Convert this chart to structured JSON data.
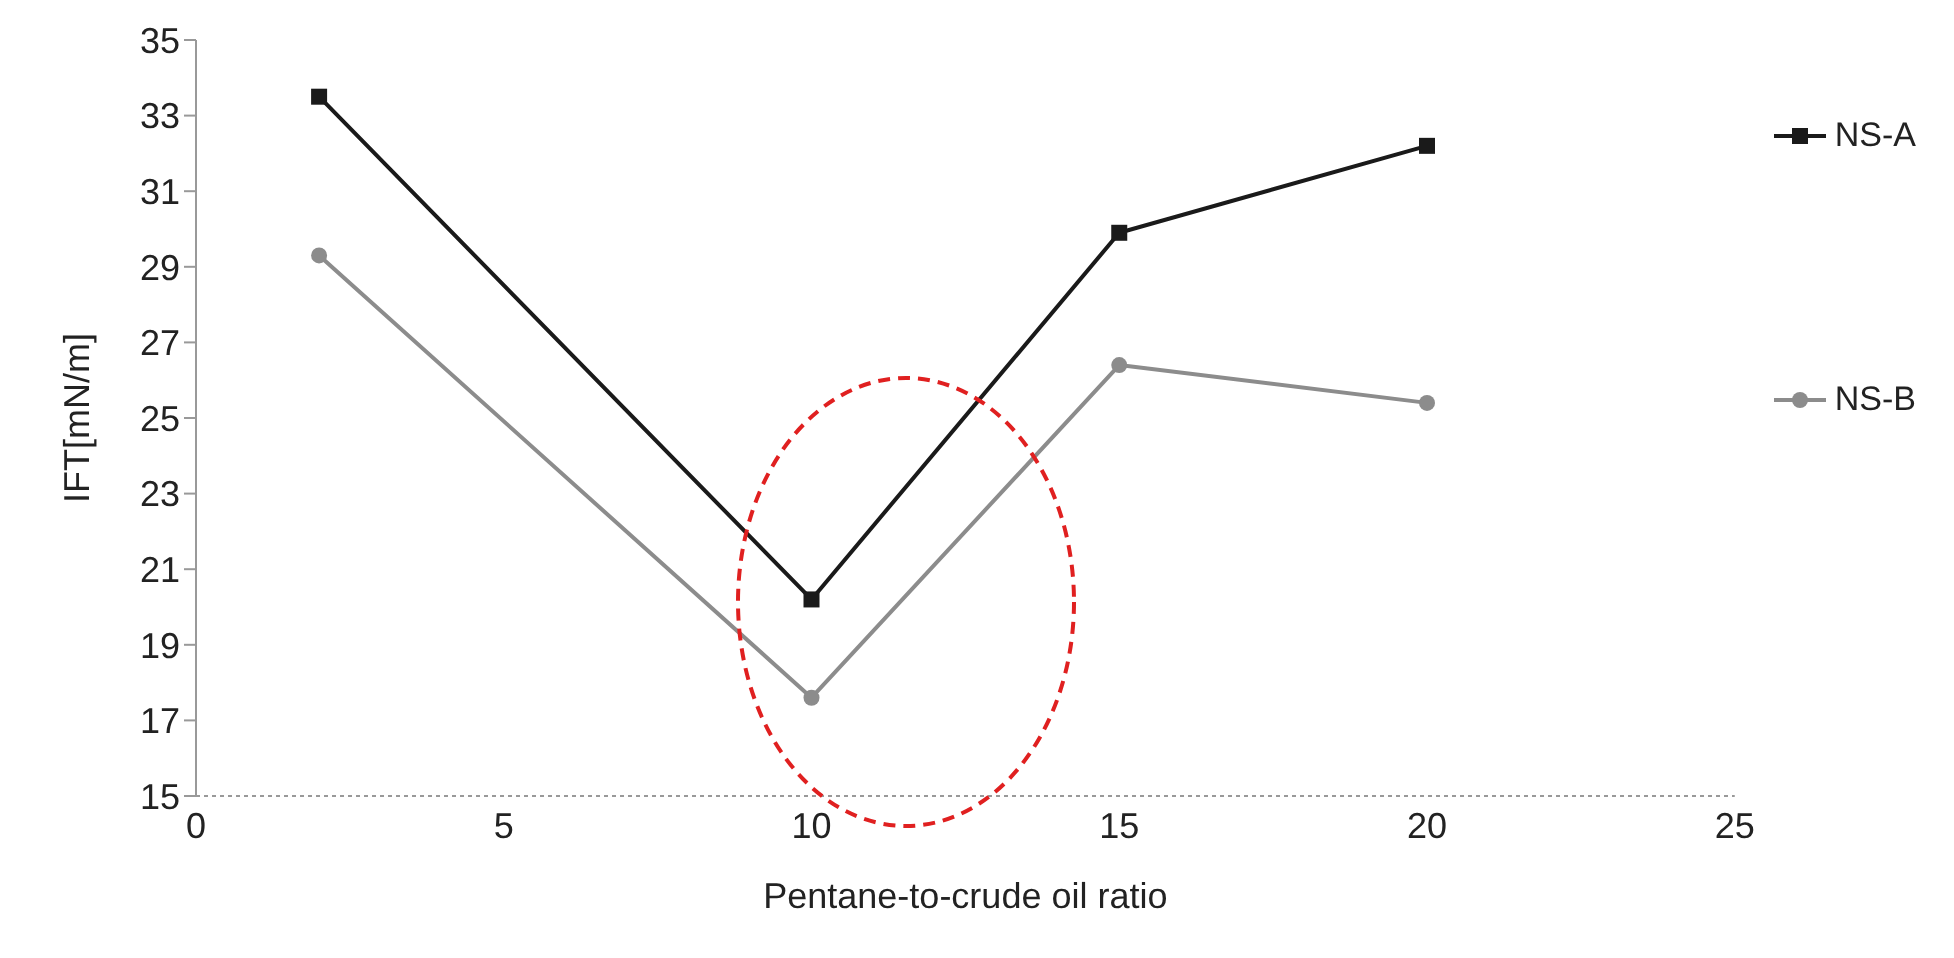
{
  "chart_data": {
    "type": "line",
    "xlabel": "Pentane-to-crude oil ratio",
    "ylabel": "IFT[mN/m]",
    "x": [
      2,
      10,
      15,
      20
    ],
    "series": [
      {
        "name": "NS-A",
        "color": "#1a1a1a",
        "marker": "square",
        "values": [
          33.5,
          20.2,
          29.9,
          32.2
        ]
      },
      {
        "name": "NS-B",
        "color": "#8c8c8c",
        "marker": "circle",
        "values": [
          29.3,
          17.6,
          26.4,
          25.4
        ]
      }
    ],
    "xlim": [
      0,
      25
    ],
    "xticks": [
      0,
      5,
      10,
      15,
      20,
      25
    ],
    "ylim": [
      15,
      35
    ],
    "yticks": [
      15,
      17,
      19,
      21,
      23,
      25,
      27,
      29,
      31,
      33,
      35
    ],
    "grid": false,
    "legend": "right",
    "line_style": "solid"
  }
}
